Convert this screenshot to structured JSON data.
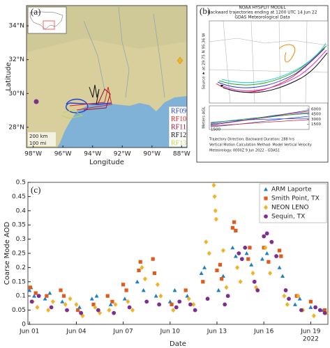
{
  "chart_data": [
    {
      "type": "map",
      "panel_label": "(a)",
      "x_label": "Longitude",
      "y_label": "Latitude",
      "xlim": [
        -98.45,
        -87.64
      ],
      "ylim": [
        26.8,
        35.2
      ],
      "xticks": [
        {
          "value": -98,
          "label": "98°W"
        },
        {
          "value": -96,
          "label": "96°W"
        },
        {
          "value": -94,
          "label": "94°W"
        },
        {
          "value": -92,
          "label": "92°W"
        },
        {
          "value": -90,
          "label": "90°W"
        },
        {
          "value": -88,
          "label": "88°W"
        }
      ],
      "yticks": [
        {
          "value": 28,
          "label": "28°N"
        },
        {
          "value": 30,
          "label": "30°N"
        },
        {
          "value": 32,
          "label": "32°N"
        },
        {
          "value": 34,
          "label": "34°N"
        }
      ],
      "scale_labels": [
        "200 km",
        "100 mi"
      ],
      "series": [
        {
          "name": "RF09",
          "color": "#1f3fe0"
        },
        {
          "name": "RF10",
          "color": "#e02020"
        },
        {
          "name": "RF11",
          "color": "#a01030"
        },
        {
          "name": "RF12",
          "color": "#111111"
        },
        {
          "name": "RF13",
          "color": "#b8d84a"
        }
      ]
    },
    {
      "type": "trajectory",
      "panel_label": "(b)",
      "title": "NOAA HYSPLIT MODEL",
      "subtitle": "Backward trajectories ending at 1200 UTC 14 Jun 22",
      "data_source": "GDAS Meteorological Data",
      "source_label": "Source ★ at 29.75 N 95.36 W",
      "y_label": "Meters AGL",
      "ylim": [
        0,
        7000
      ],
      "yticks": [
        1500,
        3000,
        4500,
        6000
      ],
      "source_height": 1500,
      "footnotes": [
        "Trajectory Direction: Backward    Duration: 288 hrs",
        "Vertical Motion Calculation Method:    Model Vertical Velocity",
        "Meteorology: 0000Z 9 Jun 2022 - GDAS1"
      ]
    },
    {
      "type": "scatter",
      "panel_label": "(c)",
      "x_label": "Date",
      "y_label": "Coarse Mode AOD",
      "year_label": "2022",
      "xlim": [
        0.9,
        20.1
      ],
      "ylim": [
        0,
        0.5
      ],
      "xticks": [
        {
          "value": 1,
          "label": "Jun 01"
        },
        {
          "value": 4,
          "label": "Jun 04"
        },
        {
          "value": 7,
          "label": "Jun 07"
        },
        {
          "value": 10,
          "label": "Jun 10"
        },
        {
          "value": 13,
          "label": "Jun 13"
        },
        {
          "value": 16,
          "label": "Jun 16"
        },
        {
          "value": 19,
          "label": "Jun 19"
        }
      ],
      "yticks": [
        0,
        0.05,
        0.1,
        0.15,
        0.2,
        0.25,
        0.3,
        0.35,
        0.4,
        0.45,
        0.5
      ],
      "legend": "upper right",
      "series": [
        {
          "name": "ARM Laporte",
          "color": "#1f7fc4",
          "marker": "triangle",
          "x": [
            1.0,
            1.1,
            1.3,
            2.0,
            2.3,
            3.1,
            4.2,
            5.0,
            5.3,
            6.2,
            7.1,
            7.9,
            8.3,
            9.1,
            10.0,
            10.3,
            11.1,
            12.0,
            12.2,
            13.1,
            13.4,
            14.0,
            14.2,
            14.9,
            15.2,
            15.9,
            16.2,
            17.0,
            17.2,
            18.0,
            18.3,
            19.0,
            19.8
          ],
          "values": [
            0.12,
            0.13,
            0.1,
            0.09,
            0.11,
            0.08,
            0.06,
            0.09,
            0.1,
            0.07,
            0.09,
            0.15,
            0.12,
            0.1,
            0.08,
            0.12,
            0.1,
            0.18,
            0.2,
            0.12,
            0.17,
            0.27,
            0.24,
            0.25,
            0.21,
            0.23,
            0.25,
            0.2,
            0.17,
            0.07,
            0.09,
            0.06,
            0.05
          ]
        },
        {
          "name": "Smith Point, TX",
          "color": "#e05a1c",
          "marker": "square",
          "x": [
            1.05,
            1.4,
            2.1,
            3.0,
            3.2,
            4.1,
            5.1,
            6.0,
            6.3,
            7.0,
            7.2,
            8.0,
            8.1,
            8.9,
            9.0,
            10.1,
            11.0,
            12.1,
            13.0,
            13.2,
            13.3,
            14.0,
            14.1,
            14.2,
            15.0,
            15.1,
            16.0,
            16.3,
            17.0,
            17.1,
            18.1,
            19.0,
            19.9
          ],
          "values": [
            0.13,
            0.11,
            0.1,
            0.12,
            0.1,
            0.05,
            0.07,
            0.1,
            0.08,
            0.14,
            0.12,
            0.19,
            0.22,
            0.23,
            0.18,
            0.07,
            0.12,
            0.15,
            0.19,
            0.21,
            0.16,
            0.34,
            0.36,
            0.33,
            0.23,
            0.27,
            0.27,
            0.22,
            0.26,
            0.24,
            0.1,
            0.08,
            0.05
          ]
        },
        {
          "name": "NEON LENO",
          "color": "#f0b323",
          "marker": "diamond",
          "x": [
            1.2,
            1.5,
            2.2,
            2.5,
            3.3,
            3.6,
            4.0,
            4.4,
            5.2,
            5.5,
            6.1,
            6.5,
            7.3,
            7.6,
            8.2,
            8.4,
            9.2,
            9.4,
            10.2,
            11.2,
            11.5,
            12.3,
            12.5,
            12.8,
            12.85,
            12.9,
            12.95,
            13.4,
            13.6,
            14.3,
            14.5,
            15.3,
            15.5,
            16.1,
            16.4,
            17.3,
            17.5,
            18.2,
            18.5,
            19.2,
            20.0
          ],
          "values": [
            0.08,
            0.06,
            0.05,
            0.08,
            0.07,
            0.09,
            0.07,
            0.03,
            0.06,
            0.04,
            0.05,
            0.07,
            0.08,
            0.05,
            0.2,
            0.16,
            0.14,
            0.1,
            0.05,
            0.09,
            0.07,
            0.29,
            0.25,
            0.49,
            0.45,
            0.4,
            0.37,
            0.26,
            0.13,
            0.2,
            0.15,
            0.18,
            0.13,
            0.27,
            0.18,
            0.1,
            0.07,
            0.1,
            0.05,
            0.03,
            0.04
          ]
        },
        {
          "name": "Sequin, TX",
          "color": "#7e2f8e",
          "marker": "circle",
          "x": [
            1.15,
            1.6,
            2.4,
            3.4,
            4.3,
            5.4,
            6.4,
            7.4,
            8.5,
            9.3,
            10.4,
            10.6,
            11.3,
            11.6,
            12.4,
            13.5,
            13.7,
            14.4,
            14.6,
            14.8,
            15.4,
            15.6,
            16.0,
            16.2,
            16.5,
            16.8,
            17.4,
            17.6,
            18.4,
            19.3,
            19.6,
            19.9
          ],
          "values": [
            0.08,
            0.1,
            0.06,
            0.05,
            0.04,
            0.05,
            0.04,
            0.06,
            0.08,
            0.07,
            0.06,
            0.08,
            0.07,
            0.05,
            0.09,
            0.07,
            0.1,
            0.25,
            0.23,
            0.27,
            0.15,
            0.12,
            0.31,
            0.32,
            0.29,
            0.24,
            0.12,
            0.09,
            0.05,
            0.06,
            0.05,
            0.04
          ]
        }
      ]
    }
  ]
}
